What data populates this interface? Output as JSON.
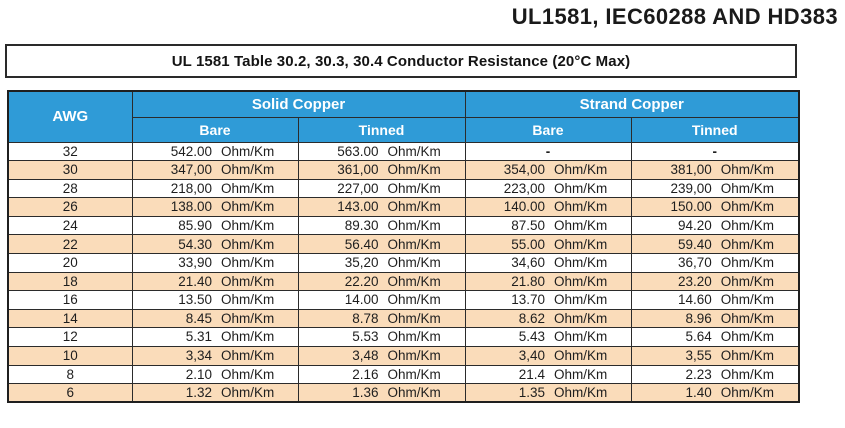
{
  "page_title": "UL1581, IEC60288 AND HD383",
  "caption": "UL 1581 Table 30.2, 30.3, 30.4  Conductor Resistance (20°C Max)",
  "colors": {
    "header_blue": "#2F9BD7",
    "row_peach": "#FADCBA",
    "border_dark": "#2B2B2B"
  },
  "table": {
    "col_awg": "AWG",
    "groups": [
      "Solid Copper",
      "Strand Copper"
    ],
    "subheaders": [
      "Bare",
      "Tinned",
      "Bare",
      "Tinned"
    ],
    "unit": "Ohm/Km",
    "empty_marker": "-",
    "rows": [
      {
        "awg": "32",
        "solid_bare": "542.00",
        "solid_tinned": "563.00",
        "strand_bare": "-",
        "strand_tinned": "-"
      },
      {
        "awg": "30",
        "solid_bare": "347,00",
        "solid_tinned": "361,00",
        "strand_bare": "354,00",
        "strand_tinned": "381,00"
      },
      {
        "awg": "28",
        "solid_bare": "218,00",
        "solid_tinned": "227,00",
        "strand_bare": "223,00",
        "strand_tinned": "239,00"
      },
      {
        "awg": "26",
        "solid_bare": "138.00",
        "solid_tinned": "143.00",
        "strand_bare": "140.00",
        "strand_tinned": "150.00"
      },
      {
        "awg": "24",
        "solid_bare": "85.90",
        "solid_tinned": "89.30",
        "strand_bare": "87.50",
        "strand_tinned": "94.20"
      },
      {
        "awg": "22",
        "solid_bare": "54.30",
        "solid_tinned": "56.40",
        "strand_bare": "55.00",
        "strand_tinned": "59.40"
      },
      {
        "awg": "20",
        "solid_bare": "33,90",
        "solid_tinned": "35,20",
        "strand_bare": "34,60",
        "strand_tinned": "36,70"
      },
      {
        "awg": "18",
        "solid_bare": "21.40",
        "solid_tinned": "22.20",
        "strand_bare": "21.80",
        "strand_tinned": "23.20"
      },
      {
        "awg": "16",
        "solid_bare": "13.50",
        "solid_tinned": "14.00",
        "strand_bare": "13.70",
        "strand_tinned": "14.60"
      },
      {
        "awg": "14",
        "solid_bare": "8.45",
        "solid_tinned": "8.78",
        "strand_bare": "8.62",
        "strand_tinned": "8.96"
      },
      {
        "awg": "12",
        "solid_bare": "5.31",
        "solid_tinned": "5.53",
        "strand_bare": "5.43",
        "strand_tinned": "5.64"
      },
      {
        "awg": "10",
        "solid_bare": "3,34",
        "solid_tinned": "3,48",
        "strand_bare": "3,40",
        "strand_tinned": "3,55"
      },
      {
        "awg": "8",
        "solid_bare": "2.10",
        "solid_tinned": "2.16",
        "strand_bare": "21.4",
        "strand_tinned": "2.23"
      },
      {
        "awg": "6",
        "solid_bare": "1.32",
        "solid_tinned": "1.36",
        "strand_bare": "1.35",
        "strand_tinned": "1.40"
      }
    ]
  }
}
